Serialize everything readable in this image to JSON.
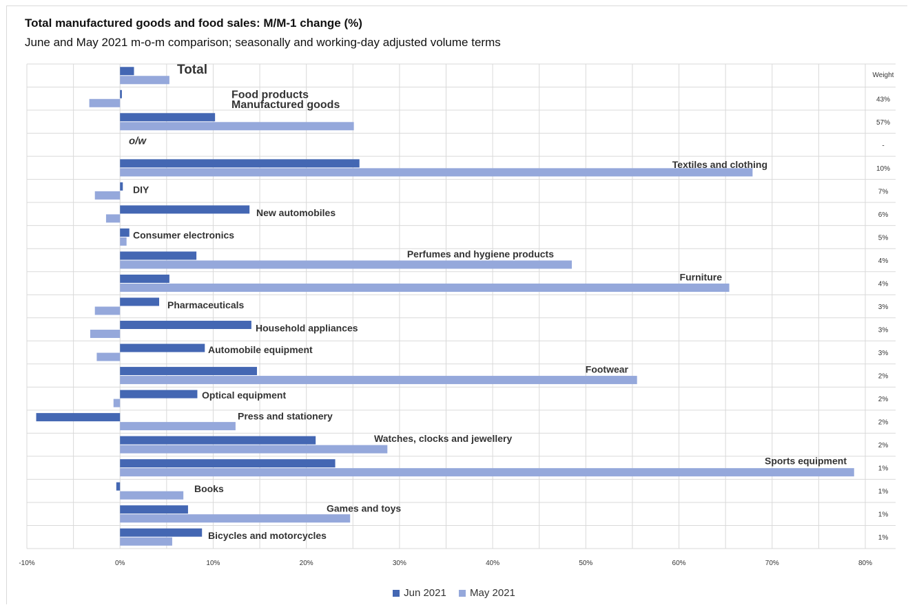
{
  "title": "Total manufactured goods and food sales: M/M-1 change (%)",
  "subtitle": "June and May 2021 m-o-m comparison; seasonally and working-day adjusted volume terms",
  "colors": {
    "jun": "#4467b3",
    "may": "#95a8db",
    "grid": "#d9d9d9",
    "text": "#333333"
  },
  "legend": {
    "jun_label": "Jun 2021",
    "may_label": "May 2021"
  },
  "weight_header": "Weight",
  "chart_data": {
    "type": "bar",
    "orientation": "horizontal",
    "x_ticks": [
      "-10%",
      "0%",
      "10%",
      "20%",
      "30%",
      "40%",
      "50%",
      "60%",
      "70%",
      "80%"
    ],
    "xlim": [
      -10,
      80
    ],
    "grid": true,
    "legend_position": "bottom",
    "categories": [
      "Total",
      "Food products",
      "Manufactured goods",
      "o/w",
      "Textiles and clothing",
      "DIY",
      "New automobiles",
      "Consumer electronics",
      "Perfumes and hygiene products",
      "Furniture",
      "Pharmaceuticals",
      "Household appliances",
      "Automobile equipment",
      "Footwear",
      "Optical equipment",
      "Press and stationery",
      "Watches, clocks and jewellery",
      "Sports equipment",
      "Books",
      "Games and toys",
      "Bicycles and motorcycles"
    ],
    "weights": [
      "",
      "43%",
      "57%",
      "-",
      "10%",
      "7%",
      "6%",
      "5%",
      "4%",
      "4%",
      "3%",
      "3%",
      "3%",
      "2%",
      "2%",
      "2%",
      "2%",
      "1%",
      "1%",
      "1%",
      "1%"
    ],
    "series": [
      {
        "name": "Jun 2021",
        "values": [
          1.5,
          0.2,
          10.2,
          null,
          25.7,
          0.3,
          13.9,
          1.0,
          8.2,
          5.3,
          4.2,
          14.1,
          9.1,
          14.7,
          8.3,
          -9.0,
          21.0,
          23.1,
          -0.4,
          7.3,
          8.8
        ]
      },
      {
        "name": "May 2021",
        "values": [
          5.3,
          -3.3,
          25.1,
          null,
          67.9,
          -2.7,
          -1.5,
          0.7,
          48.5,
          65.4,
          -2.7,
          -3.2,
          -2.5,
          55.5,
          -0.7,
          12.4,
          28.7,
          78.8,
          6.8,
          24.7,
          5.6
        ]
      }
    ]
  }
}
